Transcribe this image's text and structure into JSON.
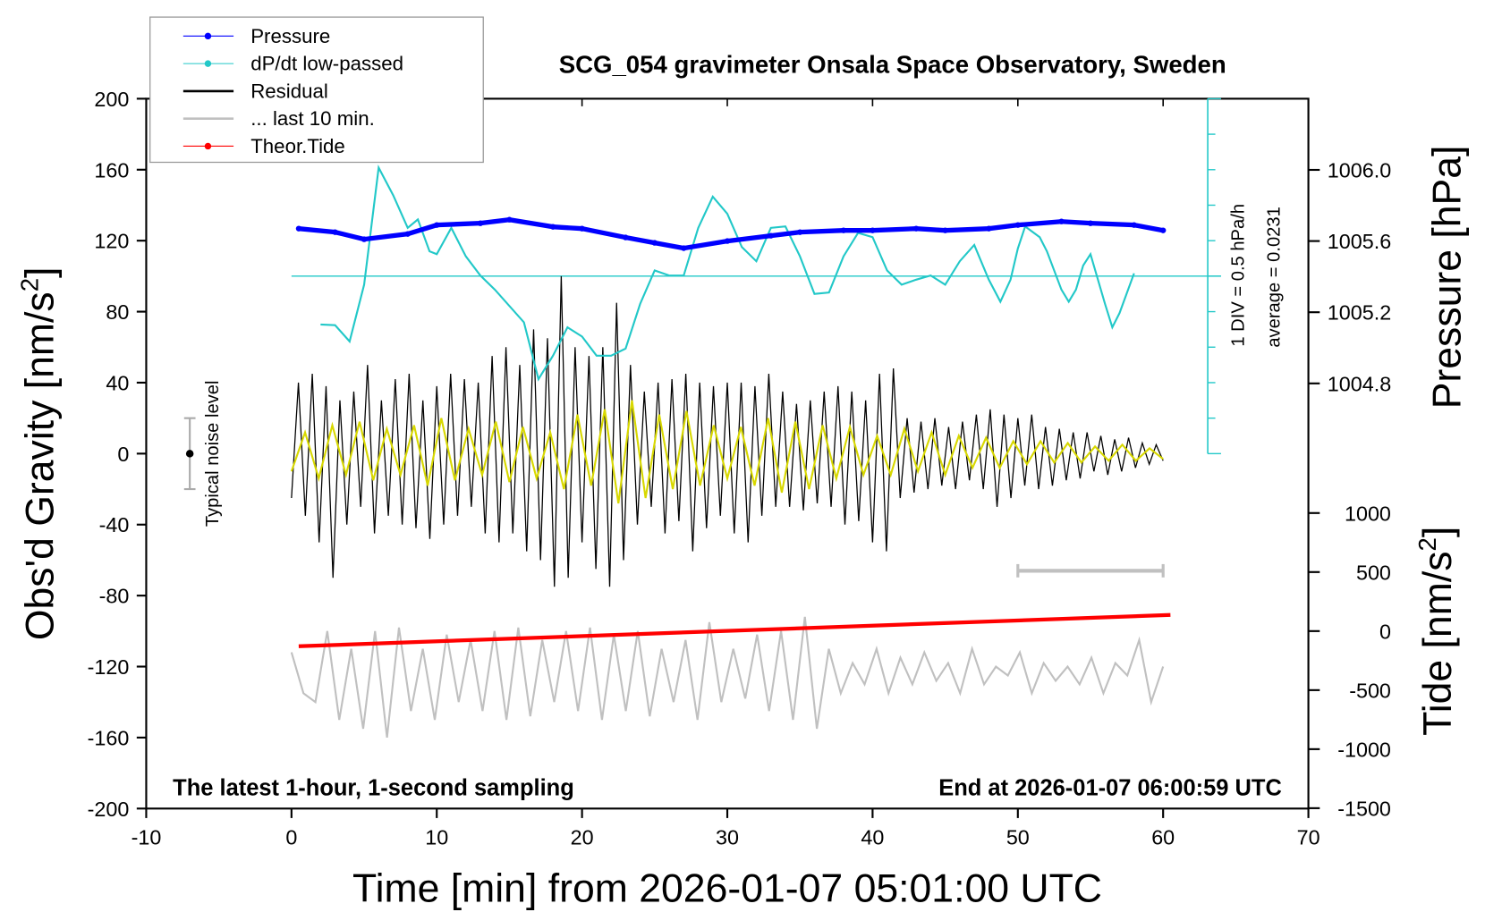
{
  "chart_data": {
    "type": "line",
    "title": "SCG_054 gravimeter Onsala Space Observatory, Sweden",
    "xlabel": "Time [min] from 2026-01-07 05:01:00 UTC",
    "ylabel_left": "Obs'd Gravity [nm/s",
    "ylabel_left_sup": "2",
    "ylabel_left_end": "]",
    "ylabel_right_top": "Pressure [hPa]",
    "ylabel_right_bottom": "Tide [nm/s",
    "ylabel_right_bottom_sup": "2",
    "ylabel_right_bottom_end": "]",
    "xlim": [
      -10,
      70
    ],
    "xticks": [
      "-10",
      "0",
      "10",
      "20",
      "30",
      "40",
      "50",
      "60",
      "70"
    ],
    "ylim_left": [
      -200,
      200
    ],
    "yticks_left": [
      "200",
      "160",
      "120",
      "80",
      "40",
      "0",
      "-40",
      "-80",
      "-120",
      "-160",
      "-200"
    ],
    "pressure_ticks": [
      "1006.0",
      "1005.6",
      "1005.2",
      "1004.8"
    ],
    "tide_ticks": [
      "1000",
      "500",
      "0",
      "-500",
      "-1000",
      "-1500"
    ],
    "notes": {
      "bottom_left": "The latest 1-hour, 1-second sampling",
      "bottom_right": "End at 2026-01-07 06:00:59 UTC",
      "div": "1 DIV = 0.5 hPa/h",
      "average": "average = 0.0231",
      "noise": "Typical noise level"
    },
    "noise_level": {
      "x": -7,
      "center": 0,
      "range": [
        -20,
        20
      ]
    },
    "last10_bar": {
      "x": [
        50,
        60
      ],
      "y": -66
    },
    "colors": {
      "pressure": "#0000ff",
      "dpdt": "#22c8c8",
      "residual": "#000000",
      "last10": "#c0c0c0",
      "tide": "#ff0000",
      "filtered": "#d8d800"
    },
    "legend": [
      {
        "label": "Pressure",
        "color": "#0000ff",
        "marker": true
      },
      {
        "label": "dP/dt low-passed",
        "color": "#22c8c8",
        "marker": true
      },
      {
        "label": "Residual",
        "color": "#000000",
        "marker": false
      },
      {
        "label": "... last 10 min.",
        "color": "#c0c0c0",
        "marker": false
      },
      {
        "label": "Theor.Tide",
        "color": "#ff0000",
        "marker": true
      }
    ],
    "legend_placement": "top-left",
    "series": {
      "pressure_hPa": {
        "t": [
          0.5,
          3,
          5,
          8,
          10,
          13,
          15,
          18,
          20,
          23,
          25,
          27,
          30,
          33,
          35,
          38,
          40,
          43,
          45,
          48,
          50,
          53,
          55,
          58,
          60
        ],
        "v": [
          1005.67,
          1005.65,
          1005.61,
          1005.64,
          1005.69,
          1005.7,
          1005.72,
          1005.68,
          1005.67,
          1005.62,
          1005.59,
          1005.56,
          1005.6,
          1005.63,
          1005.65,
          1005.66,
          1005.66,
          1005.67,
          1005.66,
          1005.67,
          1005.69,
          1005.71,
          1005.7,
          1005.69,
          1005.66
        ]
      },
      "dpdt_hPa_per_h": {
        "t": [
          2,
          3,
          4,
          5,
          6,
          7,
          8,
          8.7,
          9.5,
          10,
          11,
          12,
          13,
          14,
          16,
          17,
          18,
          19,
          20,
          21,
          22,
          23,
          24,
          25,
          26,
          27,
          28,
          29,
          30,
          31,
          32,
          33,
          34,
          35,
          36,
          37,
          38,
          39,
          40,
          41,
          42,
          43,
          44,
          45,
          46,
          47,
          48,
          48.8,
          49.5,
          50,
          50.5,
          51.5,
          52,
          53,
          53.5,
          54,
          54.5,
          55,
          56,
          56.5,
          57,
          58
        ],
        "v": [
          -0.68,
          -0.69,
          -0.92,
          -0.12,
          1.53,
          1.14,
          0.68,
          0.8,
          0.35,
          0.31,
          0.68,
          0.28,
          0.01,
          -0.19,
          -0.65,
          -1.45,
          -1.12,
          -0.72,
          -0.85,
          -1.12,
          -1.12,
          -1.02,
          -0.39,
          0.08,
          0.01,
          0.01,
          0.68,
          1.12,
          0.88,
          0.41,
          0.21,
          0.68,
          0.7,
          0.28,
          -0.25,
          -0.23,
          0.28,
          0.61,
          0.55,
          0.08,
          -0.12,
          -0.05,
          0.01,
          -0.12,
          0.21,
          0.44,
          -0.05,
          -0.36,
          -0.05,
          0.39,
          0.7,
          0.55,
          0.35,
          -0.19,
          -0.36,
          -0.19,
          0.15,
          0.31,
          -0.39,
          -0.72,
          -0.52,
          0.04
        ]
      },
      "residual": {
        "t_range": [
          0,
          60
        ],
        "v": [
          -25,
          40,
          -35,
          45,
          -50,
          38,
          -70,
          30,
          -40,
          35,
          -30,
          50,
          -45,
          30,
          -35,
          42,
          -40,
          45,
          -42,
          30,
          -48,
          38,
          -40,
          45,
          -35,
          42,
          -30,
          40,
          -45,
          55,
          -50,
          60,
          -45,
          50,
          -55,
          70,
          -60,
          65,
          -75,
          100,
          -70,
          60,
          -50,
          55,
          -65,
          60,
          -75,
          85,
          -60,
          50,
          -40,
          35,
          -30,
          40,
          -45,
          42,
          -38,
          45,
          -55,
          40,
          -42,
          38,
          -35,
          40,
          -45,
          40,
          -50,
          38,
          -35,
          45,
          -30,
          35,
          -30,
          28,
          -32,
          30,
          -28,
          35,
          -30,
          38,
          -40,
          35,
          -38,
          30,
          -50,
          45,
          -55,
          48,
          -25,
          20,
          -22,
          18,
          -20,
          20,
          -18,
          15,
          -20,
          18,
          -15,
          22,
          -20,
          25,
          -30,
          22,
          -25,
          20,
          -18,
          22,
          -20,
          15,
          -18,
          14,
          -15,
          12,
          -14,
          12,
          -10,
          10,
          -12,
          8,
          -10,
          9,
          -8,
          6,
          -6,
          5,
          -4
        ]
      },
      "filtered": {
        "t_range": [
          0,
          60
        ],
        "v": [
          -10,
          12,
          -14,
          16,
          -12,
          18,
          -15,
          14,
          -12,
          16,
          -18,
          20,
          -15,
          14,
          -12,
          18,
          -16,
          15,
          -14,
          12,
          -20,
          22,
          -18,
          25,
          -28,
          30,
          -25,
          22,
          -20,
          24,
          -18,
          16,
          -14,
          15,
          -18,
          20,
          -22,
          18,
          -20,
          16,
          -14,
          15,
          -12,
          10,
          -12,
          14,
          -10,
          12,
          -12,
          10,
          -8,
          9,
          -8,
          7,
          -6,
          7,
          -5,
          6,
          -5,
          4,
          -4,
          5,
          -4,
          3,
          -3
        ]
      },
      "last10": {
        "t_range": [
          0,
          60
        ],
        "v": [
          -112,
          -135,
          -140,
          -100,
          -150,
          -110,
          -155,
          -100,
          -160,
          -98,
          -145,
          -110,
          -150,
          -102,
          -140,
          -105,
          -145,
          -100,
          -150,
          -98,
          -148,
          -105,
          -140,
          -100,
          -145,
          -98,
          -150,
          -102,
          -145,
          -100,
          -148,
          -110,
          -140,
          -105,
          -150,
          -95,
          -140,
          -110,
          -138,
          -102,
          -145,
          -100,
          -150,
          -92,
          -155,
          -110,
          -135,
          -118,
          -130,
          -110,
          -135,
          -115,
          -130,
          -112,
          -128,
          -118,
          -135,
          -110,
          -130,
          -120,
          -125,
          -112,
          -135,
          -118,
          -128,
          -120,
          -130,
          -115,
          -135,
          -118,
          -125,
          -105,
          -140,
          -120
        ]
      },
      "tide_nm_s2": {
        "t": [
          0.5,
          60.5
        ],
        "v": [
          -129,
          137
        ]
      }
    }
  }
}
